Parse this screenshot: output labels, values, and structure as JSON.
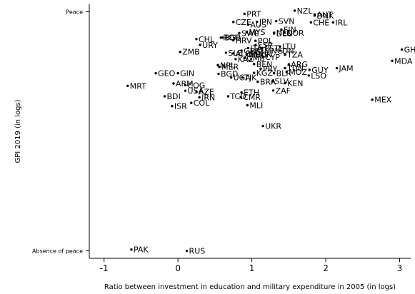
{
  "chart_data": {
    "type": "scatter",
    "xlabel": "Ratio between investment in education and military expenditure in 2005 (in logs)",
    "ylabel": "GPI 2019 (in logs)",
    "xlim": [
      -1.2,
      3.15
    ],
    "ylim": [
      0.345,
      1.535
    ],
    "xticks": [
      "-1",
      "0",
      "1",
      "2",
      "3"
    ],
    "yticks": [
      {
        "value": 1.5,
        "label": "Peace"
      },
      {
        "value": 0.38,
        "label": "Absence of peace"
      }
    ],
    "grid": false,
    "points": [
      {
        "label": "NZL",
        "x": 1.58,
        "y": 1.505
      },
      {
        "label": "AUT",
        "x": 1.85,
        "y": 1.487
      },
      {
        "label": "DNK",
        "x": 1.85,
        "y": 1.482
      },
      {
        "label": "PRT",
        "x": 0.9,
        "y": 1.49
      },
      {
        "label": "CZE",
        "x": 0.75,
        "y": 1.452
      },
      {
        "label": "AUS",
        "x": 0.95,
        "y": 1.44
      },
      {
        "label": "JPN",
        "x": 1.07,
        "y": 1.453
      },
      {
        "label": "SVN",
        "x": 1.33,
        "y": 1.456
      },
      {
        "label": "CHE",
        "x": 1.8,
        "y": 1.45
      },
      {
        "label": "IRL",
        "x": 2.1,
        "y": 1.45
      },
      {
        "label": "FIN",
        "x": 1.4,
        "y": 1.416
      },
      {
        "label": "SWE",
        "x": 0.83,
        "y": 1.4
      },
      {
        "label": "MYS",
        "x": 0.93,
        "y": 1.404
      },
      {
        "label": "NLD",
        "x": 1.3,
        "y": 1.402
      },
      {
        "label": "NOR",
        "x": 1.44,
        "y": 1.402
      },
      {
        "label": "DEU",
        "x": 1.3,
        "y": 1.398
      },
      {
        "label": "CHL",
        "x": 0.25,
        "y": 1.372
      },
      {
        "label": "ROU",
        "x": 0.58,
        "y": 1.379
      },
      {
        "label": "BGR",
        "x": 0.6,
        "y": 1.379
      },
      {
        "label": "HRV",
        "x": 0.75,
        "y": 1.366
      },
      {
        "label": "POL",
        "x": 1.05,
        "y": 1.364
      },
      {
        "label": "URY",
        "x": 0.3,
        "y": 1.345
      },
      {
        "label": "ESP",
        "x": 1.05,
        "y": 1.344
      },
      {
        "label": "LTU",
        "x": 1.38,
        "y": 1.337
      },
      {
        "label": "ITA",
        "x": 0.95,
        "y": 1.33
      },
      {
        "label": "EST",
        "x": 1.14,
        "y": 1.33
      },
      {
        "label": "ZMB",
        "x": 0.03,
        "y": 1.312
      },
      {
        "label": "SLE",
        "x": 0.65,
        "y": 1.308
      },
      {
        "label": "ALB",
        "x": 0.75,
        "y": 1.305
      },
      {
        "label": "GBR",
        "x": 0.86,
        "y": 1.318
      },
      {
        "label": "MNG",
        "x": 1.14,
        "y": 1.318
      },
      {
        "label": "ISL",
        "x": 1.0,
        "y": 1.314
      },
      {
        "label": "DN",
        "x": 1.38,
        "y": 1.318
      },
      {
        "label": "HUN",
        "x": 1.01,
        "y": 1.3
      },
      {
        "label": "MDG",
        "x": 0.93,
        "y": 1.299
      },
      {
        "label": "TZA",
        "x": 1.45,
        "y": 1.299
      },
      {
        "label": "KAZ",
        "x": 0.78,
        "y": 1.278
      },
      {
        "label": "GMB",
        "x": 0.9,
        "y": 1.283
      },
      {
        "label": "CYP",
        "x": 1.15,
        "y": 1.288
      },
      {
        "label": "GH",
        "x": 3.03,
        "y": 1.323
      },
      {
        "label": "MDA",
        "x": 2.9,
        "y": 1.27
      },
      {
        "label": "BEN",
        "x": 1.03,
        "y": 1.255
      },
      {
        "label": "ARG",
        "x": 1.5,
        "y": 1.254
      },
      {
        "label": "NPL",
        "x": 0.54,
        "y": 1.25
      },
      {
        "label": "MER",
        "x": 0.56,
        "y": 1.242
      },
      {
        "label": "PRY",
        "x": 1.12,
        "y": 1.233
      },
      {
        "label": "TUN",
        "x": 1.45,
        "y": 1.236
      },
      {
        "label": "JAM",
        "x": 2.15,
        "y": 1.236
      },
      {
        "label": "GUY",
        "x": 1.78,
        "y": 1.228
      },
      {
        "label": "KGZ",
        "x": 1.03,
        "y": 1.214
      },
      {
        "label": "BLR",
        "x": 1.3,
        "y": 1.212
      },
      {
        "label": "MOZ",
        "x": 1.47,
        "y": 1.218
      },
      {
        "label": "GEO",
        "x": -0.3,
        "y": 1.212
      },
      {
        "label": "GIN",
        "x": 0.0,
        "y": 1.212
      },
      {
        "label": "BGD",
        "x": 0.55,
        "y": 1.209
      },
      {
        "label": "LSO",
        "x": 1.77,
        "y": 1.201
      },
      {
        "label": "UGA",
        "x": 0.72,
        "y": 1.192
      },
      {
        "label": "TJK",
        "x": 0.87,
        "y": 1.192
      },
      {
        "label": "BRA",
        "x": 1.08,
        "y": 1.172
      },
      {
        "label": "SLV",
        "x": 1.28,
        "y": 1.175
      },
      {
        "label": "KEN",
        "x": 1.45,
        "y": 1.166
      },
      {
        "label": "MRT",
        "x": -0.68,
        "y": 1.153
      },
      {
        "label": "ARM",
        "x": -0.06,
        "y": 1.164
      },
      {
        "label": "COG",
        "x": 0.1,
        "y": 1.156
      },
      {
        "label": "USA",
        "x": 0.1,
        "y": 1.13
      },
      {
        "label": "AZE",
        "x": 0.25,
        "y": 1.125
      },
      {
        "label": "ZAF",
        "x": 1.29,
        "y": 1.131
      },
      {
        "label": "ETH",
        "x": 0.86,
        "y": 1.122
      },
      {
        "label": "BDI",
        "x": -0.18,
        "y": 1.104
      },
      {
        "label": "TCD",
        "x": 0.68,
        "y": 1.104
      },
      {
        "label": "IRN",
        "x": 0.29,
        "y": 1.099
      },
      {
        "label": "CMR",
        "x": 0.85,
        "y": 1.1
      },
      {
        "label": "MEX",
        "x": 2.63,
        "y": 1.088
      },
      {
        "label": "COL",
        "x": 0.18,
        "y": 1.073
      },
      {
        "label": "MLI",
        "x": 0.94,
        "y": 1.062
      },
      {
        "label": "ISR",
        "x": -0.08,
        "y": 1.058
      },
      {
        "label": "UKR",
        "x": 1.15,
        "y": 0.965
      },
      {
        "label": "PAK",
        "x": -0.63,
        "y": 0.386
      },
      {
        "label": "RUS",
        "x": 0.12,
        "y": 0.38
      }
    ]
  }
}
